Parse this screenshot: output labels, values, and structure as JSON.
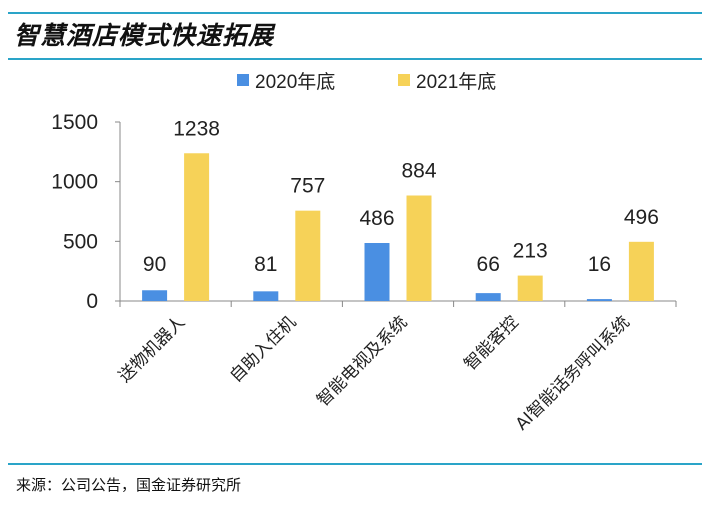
{
  "title": "智慧酒店模式快速拓展",
  "source": "来源：公司公告，国金证券研究所",
  "chart_data": {
    "type": "bar",
    "categories": [
      "送物机器人",
      "自助入住机",
      "智能电视及系统",
      "智能客控",
      "AI智能话务呼叫系统"
    ],
    "series": [
      {
        "name": "2020年底",
        "values": [
          90,
          81,
          486,
          66,
          16
        ],
        "color": "#4a8fe2"
      },
      {
        "name": "2021年底",
        "values": [
          1238,
          757,
          884,
          213,
          496
        ],
        "color": "#f6d258"
      }
    ],
    "yticks": [
      0,
      500,
      1000,
      1500
    ],
    "ylim": [
      0,
      1500
    ],
    "legend": "top"
  }
}
